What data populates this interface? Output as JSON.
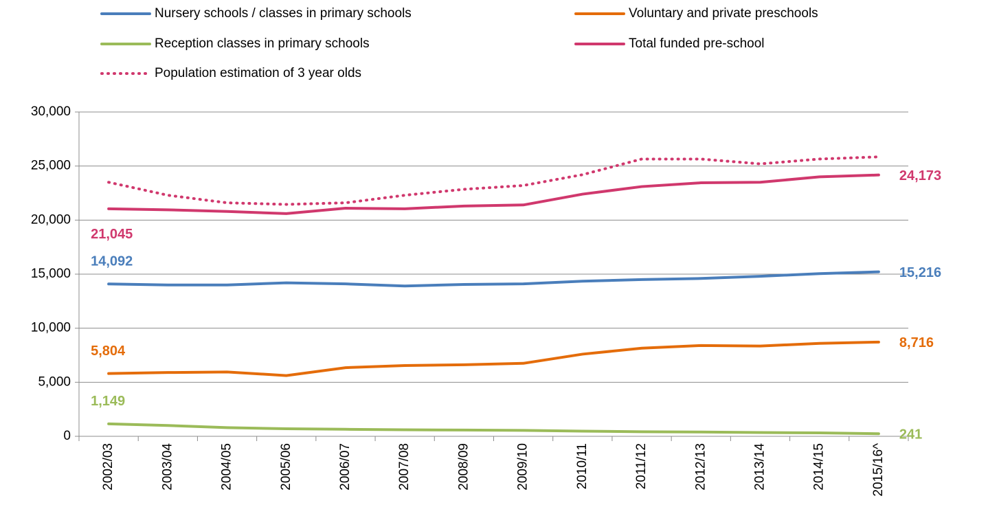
{
  "chart_data": {
    "type": "line",
    "categories": [
      "2002/03",
      "2003/04",
      "2004/05",
      "2005/06",
      "2006/07",
      "2007/08",
      "2008/09",
      "2009/10",
      "2010/11",
      "2011/12",
      "2012/13",
      "2013/14",
      "2014/15",
      "2015/16^"
    ],
    "series": [
      {
        "name": "Nursery schools / classes in primary schools",
        "color": "#4a7ebb",
        "style": "solid",
        "values": [
          14092,
          14000,
          14000,
          14200,
          14100,
          13900,
          14050,
          14100,
          14350,
          14500,
          14600,
          14800,
          15050,
          15216
        ],
        "value_labels": [
          "14,092",
          null,
          null,
          null,
          null,
          null,
          null,
          null,
          null,
          null,
          null,
          null,
          null,
          "15,216"
        ]
      },
      {
        "name": "Voluntary and private preschools",
        "color": "#e46c0a",
        "style": "solid",
        "values": [
          5804,
          5900,
          5950,
          5620,
          6350,
          6550,
          6620,
          6750,
          7600,
          8150,
          8400,
          8350,
          8600,
          8716
        ],
        "value_labels": [
          "5,804",
          null,
          null,
          null,
          null,
          null,
          null,
          null,
          null,
          null,
          null,
          null,
          null,
          "8,716"
        ]
      },
      {
        "name": "Reception classes in primary schools",
        "color": "#9bbb59",
        "style": "solid",
        "values": [
          1149,
          1000,
          800,
          700,
          650,
          600,
          580,
          550,
          480,
          420,
          400,
          350,
          320,
          241
        ],
        "value_labels": [
          "1,149",
          null,
          null,
          null,
          null,
          null,
          null,
          null,
          null,
          null,
          null,
          null,
          null,
          "241"
        ]
      },
      {
        "name": "Total funded pre-school",
        "color": "#d0386d",
        "style": "solid",
        "values": [
          21045,
          20950,
          20800,
          20600,
          21100,
          21050,
          21300,
          21400,
          22400,
          23100,
          23450,
          23500,
          24000,
          24173
        ],
        "value_labels": [
          "21,045",
          null,
          null,
          null,
          null,
          null,
          null,
          null,
          null,
          null,
          null,
          null,
          null,
          "24,173"
        ]
      },
      {
        "name": "Population estimation of 3 year olds",
        "color": "#d0386d",
        "style": "dotted",
        "values": [
          23500,
          22300,
          21600,
          21450,
          21600,
          22300,
          22850,
          23200,
          24200,
          25650,
          25650,
          25200,
          25650,
          25850
        ]
      }
    ],
    "ylim": [
      0,
      30000
    ],
    "yticks": [
      0,
      {
        "value": 5000,
        "label": "5,000"
      },
      {
        "value": 10000,
        "label": "10,000"
      },
      {
        "value": 15000,
        "label": "15,000"
      },
      {
        "value": 20000,
        "label": "20,000"
      },
      {
        "value": 25000,
        "label": "25,000"
      },
      {
        "value": 30000,
        "label": "30,000"
      }
    ],
    "grid": true
  }
}
